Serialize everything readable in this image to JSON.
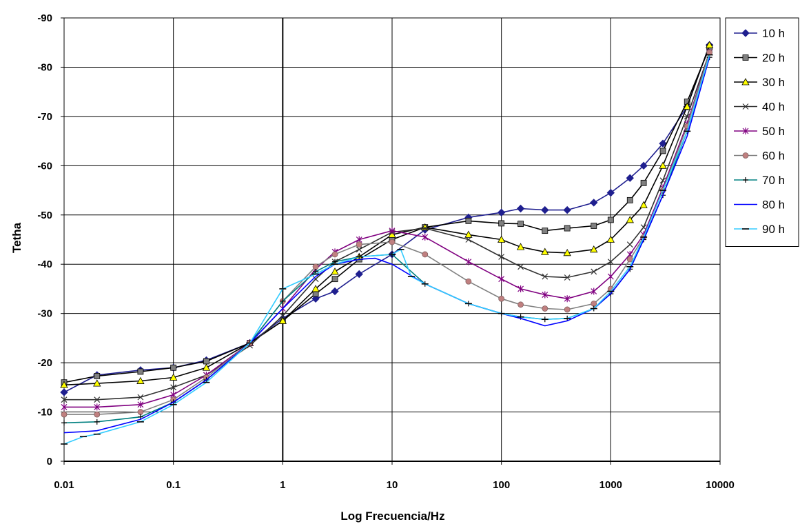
{
  "chart_data": {
    "type": "line",
    "xlabel": "Log Frecuencia/Hz",
    "ylabel": "Tetha",
    "x_scale": "log",
    "xlim": [
      0.01,
      10000
    ],
    "ylim": [
      0,
      -90
    ],
    "y_axis_reversed": true,
    "x_ticks": [
      "0.01",
      "0.1",
      "1",
      "10",
      "100",
      "1000",
      "10000"
    ],
    "y_ticks": [
      "0",
      "-10",
      "-20",
      "-30",
      "-40",
      "-50",
      "-60",
      "-70",
      "-80",
      "-90"
    ],
    "grid": true,
    "legend_position": "right",
    "series": [
      {
        "name": "10 h",
        "color": "#1f1f8f",
        "marker": "diamond",
        "points": [
          [
            0.01,
            -14
          ],
          [
            0.02,
            -17.5
          ],
          [
            0.05,
            -18.5
          ],
          [
            0.1,
            -19
          ],
          [
            0.2,
            -20.5
          ],
          [
            0.5,
            -24
          ],
          [
            1,
            -29
          ],
          [
            2,
            -33
          ],
          [
            3,
            -34.5
          ],
          [
            5,
            -38
          ],
          [
            10,
            -42
          ],
          [
            20,
            -47
          ],
          [
            50,
            -49.5
          ],
          [
            100,
            -50.5
          ],
          [
            150,
            -51.3
          ],
          [
            250,
            -51
          ],
          [
            400,
            -51
          ],
          [
            700,
            -52.5
          ],
          [
            1000,
            -54.5
          ],
          [
            1500,
            -57.5
          ],
          [
            2000,
            -60
          ],
          [
            3000,
            -64.5
          ],
          [
            5000,
            -72
          ],
          [
            8000,
            -84.5
          ]
        ]
      },
      {
        "name": "20 h",
        "color": "#808080",
        "marker": "square",
        "points": [
          [
            0.01,
            -16
          ],
          [
            0.02,
            -17.3
          ],
          [
            0.05,
            -18.2
          ],
          [
            0.1,
            -19
          ],
          [
            0.2,
            -20.3
          ],
          [
            0.5,
            -24
          ],
          [
            1,
            -28.5
          ],
          [
            2,
            -34
          ],
          [
            3,
            -37
          ],
          [
            5,
            -41
          ],
          [
            10,
            -45
          ],
          [
            20,
            -47.5
          ],
          [
            50,
            -48.8
          ],
          [
            100,
            -48.3
          ],
          [
            150,
            -48.2
          ],
          [
            250,
            -46.8
          ],
          [
            400,
            -47.3
          ],
          [
            700,
            -47.8
          ],
          [
            1000,
            -49
          ],
          [
            1500,
            -53
          ],
          [
            2000,
            -56.5
          ],
          [
            3000,
            -63
          ],
          [
            5000,
            -73
          ],
          [
            8000,
            -84
          ]
        ]
      },
      {
        "name": "30 h",
        "color": "#ffff00",
        "marker": "triangle",
        "points": [
          [
            0.01,
            -15.5
          ],
          [
            0.02,
            -15.8
          ],
          [
            0.05,
            -16.3
          ],
          [
            0.1,
            -17
          ],
          [
            0.2,
            -19
          ],
          [
            0.5,
            -24
          ],
          [
            1,
            -28.5
          ],
          [
            2,
            -35
          ],
          [
            3,
            -38.5
          ],
          [
            5,
            -41.5
          ],
          [
            10,
            -46
          ],
          [
            20,
            -47.5
          ],
          [
            50,
            -46
          ],
          [
            100,
            -45
          ],
          [
            150,
            -43.5
          ],
          [
            250,
            -42.5
          ],
          [
            400,
            -42.3
          ],
          [
            700,
            -43
          ],
          [
            1000,
            -45
          ],
          [
            1500,
            -49
          ],
          [
            2000,
            -52
          ],
          [
            3000,
            -60
          ],
          [
            5000,
            -72
          ],
          [
            8000,
            -84.5
          ]
        ]
      },
      {
        "name": "40 h",
        "color": "#303030",
        "marker": "x",
        "points": [
          [
            0.01,
            -12.5
          ],
          [
            0.02,
            -12.5
          ],
          [
            0.05,
            -13
          ],
          [
            0.1,
            -15
          ],
          [
            0.2,
            -17.5
          ],
          [
            0.5,
            -23.5
          ],
          [
            1,
            -29.5
          ],
          [
            2,
            -37
          ],
          [
            3,
            -40.5
          ],
          [
            5,
            -43
          ],
          [
            10,
            -46.5
          ],
          [
            20,
            -47.3
          ],
          [
            50,
            -45
          ],
          [
            100,
            -41.5
          ],
          [
            150,
            -39.5
          ],
          [
            250,
            -37.5
          ],
          [
            400,
            -37.3
          ],
          [
            700,
            -38.5
          ],
          [
            1000,
            -40.5
          ],
          [
            1500,
            -44
          ],
          [
            2000,
            -47.5
          ],
          [
            3000,
            -57
          ],
          [
            5000,
            -70
          ],
          [
            8000,
            -83
          ]
        ]
      },
      {
        "name": "50 h",
        "color": "#800080",
        "marker": "star",
        "points": [
          [
            0.01,
            -11
          ],
          [
            0.02,
            -11
          ],
          [
            0.05,
            -11.5
          ],
          [
            0.1,
            -13.5
          ],
          [
            0.2,
            -17.5
          ],
          [
            0.5,
            -24
          ],
          [
            1,
            -31
          ],
          [
            2,
            -39
          ],
          [
            3,
            -42.5
          ],
          [
            5,
            -45
          ],
          [
            10,
            -46.8
          ],
          [
            20,
            -45.5
          ],
          [
            50,
            -40.5
          ],
          [
            100,
            -37
          ],
          [
            150,
            -35
          ],
          [
            250,
            -33.8
          ],
          [
            400,
            -33
          ],
          [
            700,
            -34.5
          ],
          [
            1000,
            -37.5
          ],
          [
            1500,
            -42
          ],
          [
            2000,
            -46
          ],
          [
            3000,
            -55.5
          ],
          [
            5000,
            -68.5
          ],
          [
            8000,
            -83
          ]
        ]
      },
      {
        "name": "60 h",
        "color": "#c08080",
        "marker": "circle",
        "points": [
          [
            0.01,
            -9.5
          ],
          [
            0.02,
            -9.5
          ],
          [
            0.05,
            -10
          ],
          [
            0.1,
            -12.5
          ],
          [
            0.2,
            -17
          ],
          [
            0.5,
            -24
          ],
          [
            1,
            -32.5
          ],
          [
            2,
            -39.5
          ],
          [
            3,
            -42
          ],
          [
            5,
            -44
          ],
          [
            10,
            -44.5
          ],
          [
            20,
            -42
          ],
          [
            50,
            -36.5
          ],
          [
            100,
            -33
          ],
          [
            150,
            -31.8
          ],
          [
            250,
            -31
          ],
          [
            400,
            -30.8
          ],
          [
            700,
            -32
          ],
          [
            1000,
            -35
          ],
          [
            1500,
            -41
          ],
          [
            2000,
            -45.5
          ],
          [
            3000,
            -55
          ],
          [
            5000,
            -68
          ],
          [
            8000,
            -83
          ]
        ]
      },
      {
        "name": "70 h",
        "color": "#008080",
        "marker": "plus",
        "points": [
          [
            0.01,
            -7.8
          ],
          [
            0.02,
            -8
          ],
          [
            0.05,
            -9
          ],
          [
            0.1,
            -12
          ],
          [
            0.2,
            -16.5
          ],
          [
            0.5,
            -24
          ],
          [
            1,
            -32.5
          ],
          [
            2,
            -38.5
          ],
          [
            3,
            -40.5
          ],
          [
            5,
            -41.5
          ],
          [
            10,
            -42
          ],
          [
            20,
            -36
          ],
          [
            50,
            -32
          ],
          [
            100,
            -30
          ],
          [
            150,
            -29.3
          ],
          [
            250,
            -28.8
          ],
          [
            400,
            -29
          ],
          [
            700,
            -31
          ],
          [
            1000,
            -34
          ],
          [
            1500,
            -39
          ],
          [
            2000,
            -45
          ],
          [
            3000,
            -54
          ],
          [
            5000,
            -67
          ],
          [
            8000,
            -82
          ]
        ]
      },
      {
        "name": "80 h",
        "color": "#0000ff",
        "marker": "none",
        "points": [
          [
            0.01,
            -5.8
          ],
          [
            0.015,
            -6
          ],
          [
            0.02,
            -6.2
          ],
          [
            0.05,
            -8.5
          ],
          [
            0.1,
            -12
          ],
          [
            0.2,
            -16.5
          ],
          [
            0.5,
            -24
          ],
          [
            1,
            -31
          ],
          [
            2,
            -37.5
          ],
          [
            3,
            -40
          ],
          [
            5,
            -41
          ],
          [
            7,
            -41.2
          ],
          [
            10,
            -40
          ],
          [
            20,
            -36
          ],
          [
            50,
            -32
          ],
          [
            100,
            -30
          ],
          [
            150,
            -29
          ],
          [
            250,
            -27.5
          ],
          [
            400,
            -28.5
          ],
          [
            700,
            -31
          ],
          [
            1000,
            -34
          ],
          [
            1500,
            -39
          ],
          [
            2000,
            -45
          ],
          [
            3000,
            -54
          ],
          [
            5000,
            -66
          ],
          [
            8000,
            -82
          ]
        ]
      },
      {
        "name": "90 h",
        "color": "#33ccff",
        "marker": "dash",
        "points": [
          [
            0.01,
            -3.5
          ],
          [
            0.015,
            -5
          ],
          [
            0.02,
            -5.5
          ],
          [
            0.05,
            -8
          ],
          [
            0.1,
            -11.5
          ],
          [
            0.2,
            -16
          ],
          [
            0.5,
            -24
          ],
          [
            1,
            -35
          ],
          [
            2,
            -38
          ],
          [
            3,
            -40
          ],
          [
            5,
            -41.5
          ],
          [
            10,
            -42
          ],
          [
            12,
            -43
          ],
          [
            15,
            -37.5
          ],
          [
            20,
            -36
          ],
          [
            50,
            -32
          ],
          [
            100,
            -30
          ],
          [
            150,
            -29.3
          ],
          [
            250,
            -28.8
          ],
          [
            400,
            -29
          ],
          [
            700,
            -31
          ],
          [
            1000,
            -34.5
          ],
          [
            1500,
            -39.5
          ],
          [
            2000,
            -45.5
          ],
          [
            3000,
            -55
          ],
          [
            5000,
            -67
          ],
          [
            8000,
            -82.5
          ]
        ]
      }
    ]
  }
}
